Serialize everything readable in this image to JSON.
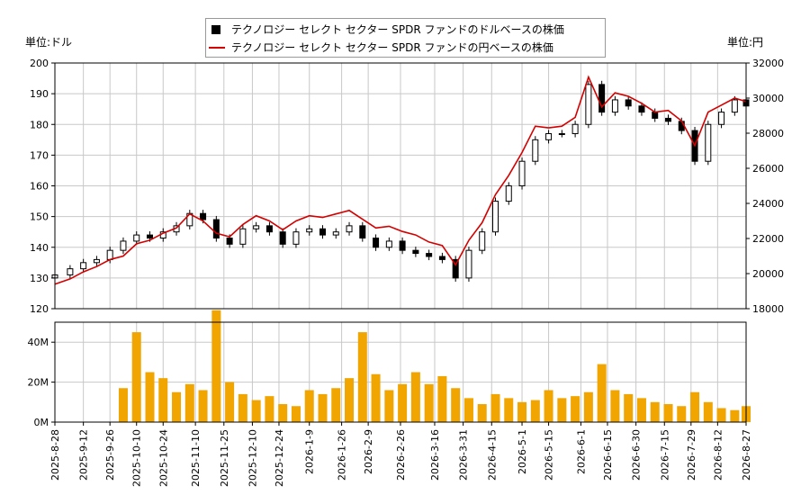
{
  "legend": {
    "usd_label": "テクノロジー セレクト セクター SPDR ファンドのドルベースの株価",
    "jpy_label": "テクノロジー セレクト セクター SPDR ファンドの円ベースの株価"
  },
  "units": {
    "left": "単位:ドル",
    "right": "単位:円"
  },
  "colors": {
    "usd_candle": "#000000",
    "jpy_line": "#d40000",
    "volume_bar": "#f0a500",
    "grid": "#c8c8c8"
  },
  "chart_data": [
    {
      "type": "candlestick",
      "title": "",
      "ylabel": "単位:ドル",
      "y2label": "単位:円",
      "ylim": [
        120,
        200
      ],
      "y2lim": [
        18000,
        32000
      ],
      "yticks": [
        "120",
        "130",
        "140",
        "150",
        "160",
        "170",
        "180",
        "190",
        "200"
      ],
      "y2ticks": [
        "18000",
        "20000",
        "22000",
        "24000",
        "26000",
        "28000",
        "30000",
        "32000"
      ],
      "grid": true,
      "legend_position": "top",
      "series": [
        {
          "name": "テクノロジー セレクト セクター SPDR ファンドのドルベースの株価",
          "dates": [
            "2025-08-28",
            "2025-09-05",
            "2025-09-12",
            "2025-09-19",
            "2025-09-26",
            "2025-10-03",
            "2025-10-10",
            "2025-10-17",
            "2025-10-24",
            "2025-10-31",
            "2025-11-07",
            "2025-11-14",
            "2025-11-21",
            "2025-11-28",
            "2025-12-05",
            "2025-12-12",
            "2025-12-19",
            "2025-12-26",
            "2026-01-02",
            "2026-01-09",
            "2026-01-16",
            "2026-01-23",
            "2026-01-30",
            "2026-02-06",
            "2026-02-13",
            "2026-02-20",
            "2026-02-27",
            "2026-03-06",
            "2026-03-13",
            "2026-03-20",
            "2026-03-27",
            "2026-04-03",
            "2026-04-10",
            "2026-04-17",
            "2026-04-24",
            "2026-05-01",
            "2026-05-08",
            "2026-05-15",
            "2026-05-22",
            "2026-05-29",
            "2026-06-05",
            "2026-06-12",
            "2026-06-19",
            "2026-06-26",
            "2026-07-03",
            "2026-07-10",
            "2026-07-17",
            "2026-07-24",
            "2026-07-31",
            "2026-08-07",
            "2026-08-14",
            "2026-08-21",
            "2026-08-27"
          ],
          "values": [
            131,
            133,
            135,
            136,
            139,
            142,
            144,
            143,
            145,
            147,
            151,
            149,
            143,
            141,
            146,
            147,
            145,
            141,
            145,
            146,
            144,
            145,
            147,
            143,
            140,
            142,
            139,
            138,
            137,
            136,
            130,
            139,
            145,
            155,
            160,
            168,
            175,
            177,
            177,
            180,
            193,
            184,
            188,
            186,
            184,
            182,
            181,
            178,
            168,
            180,
            184,
            188,
            186
          ]
        },
        {
          "name": "テクノロジー セレクト セクター SPDR ファンドの円ベースの株価",
          "dates": [
            "2025-08-28",
            "2025-09-05",
            "2025-09-12",
            "2025-09-19",
            "2025-09-26",
            "2025-10-03",
            "2025-10-10",
            "2025-10-17",
            "2025-10-24",
            "2025-10-31",
            "2025-11-07",
            "2025-11-14",
            "2025-11-21",
            "2025-11-28",
            "2025-12-05",
            "2025-12-12",
            "2025-12-19",
            "2025-12-26",
            "2026-01-02",
            "2026-01-09",
            "2026-01-16",
            "2026-01-23",
            "2026-01-30",
            "2026-02-06",
            "2026-02-13",
            "2026-02-20",
            "2026-02-27",
            "2026-03-06",
            "2026-03-13",
            "2026-03-20",
            "2026-03-27",
            "2026-04-03",
            "2026-04-10",
            "2026-04-17",
            "2026-04-24",
            "2026-05-01",
            "2026-05-08",
            "2026-05-15",
            "2026-05-22",
            "2026-05-29",
            "2026-06-05",
            "2026-06-12",
            "2026-06-19",
            "2026-06-26",
            "2026-07-03",
            "2026-07-10",
            "2026-07-17",
            "2026-07-24",
            "2026-07-31",
            "2026-08-07",
            "2026-08-14",
            "2026-08-21",
            "2026-08-27"
          ],
          "values": [
            19400,
            19700,
            20100,
            20400,
            20800,
            21000,
            21700,
            21900,
            22300,
            22600,
            23400,
            23000,
            22300,
            22100,
            22800,
            23300,
            23000,
            22500,
            23000,
            23300,
            23200,
            23400,
            23600,
            23100,
            22600,
            22700,
            22400,
            22200,
            21800,
            21600,
            20500,
            21900,
            22900,
            24500,
            25600,
            26900,
            28400,
            28300,
            28400,
            28900,
            31200,
            29500,
            30300,
            30100,
            29700,
            29200,
            29300,
            28700,
            27300,
            29200,
            29600,
            30000,
            29800
          ]
        }
      ]
    },
    {
      "type": "bar",
      "title": "",
      "ylabel": "",
      "ylim": [
        0,
        50000000
      ],
      "yticks": [
        "0M",
        "20M",
        "40M"
      ],
      "xticks": [
        "2025-8-28",
        "2025-9-12",
        "2025-9-26",
        "2025-10-10",
        "2025-10-24",
        "2025-11-10",
        "2025-11-25",
        "2025-12-10",
        "2025-12-24",
        "2026-1-9",
        "2026-1-26",
        "2026-2-9",
        "2026-2-26",
        "2026-3-16",
        "2026-3-31",
        "2026-4-15",
        "2026-5-1",
        "2026-5-15",
        "2026-6-1",
        "2026-6-15",
        "2026-6-30",
        "2026-7-15",
        "2026-7-29",
        "2026-8-12",
        "2026-8-27"
      ],
      "dates": [
        "2025-10-03",
        "2025-10-10",
        "2025-10-17",
        "2025-10-24",
        "2025-10-31",
        "2025-11-07",
        "2025-11-14",
        "2025-11-21",
        "2025-11-28",
        "2025-12-05",
        "2025-12-12",
        "2025-12-19",
        "2025-12-26",
        "2026-01-02",
        "2026-01-09",
        "2026-01-16",
        "2026-01-23",
        "2026-01-30",
        "2026-02-06",
        "2026-02-13",
        "2026-02-20",
        "2026-02-27",
        "2026-03-06",
        "2026-03-13",
        "2026-03-20",
        "2026-03-27",
        "2026-04-03",
        "2026-04-10",
        "2026-04-17",
        "2026-04-24",
        "2026-05-01",
        "2026-05-08",
        "2026-05-15",
        "2026-05-22",
        "2026-05-29",
        "2026-06-05",
        "2026-06-12",
        "2026-06-19",
        "2026-06-26",
        "2026-07-03",
        "2026-07-10",
        "2026-07-17",
        "2026-07-24",
        "2026-07-31",
        "2026-08-07",
        "2026-08-14",
        "2026-08-21",
        "2026-08-27"
      ],
      "values": [
        17000000,
        45000000,
        25000000,
        22000000,
        15000000,
        19000000,
        16000000,
        56000000,
        20000000,
        14000000,
        11000000,
        13000000,
        9000000,
        8000000,
        16000000,
        14000000,
        17000000,
        22000000,
        45000000,
        24000000,
        16000000,
        19000000,
        25000000,
        19000000,
        23000000,
        17000000,
        12000000,
        9000000,
        14000000,
        12000000,
        10000000,
        11000000,
        16000000,
        12000000,
        13000000,
        15000000,
        29000000,
        16000000,
        14000000,
        12000000,
        10000000,
        9000000,
        8000000,
        15000000,
        10000000,
        7000000,
        6000000,
        8000000
      ]
    }
  ]
}
